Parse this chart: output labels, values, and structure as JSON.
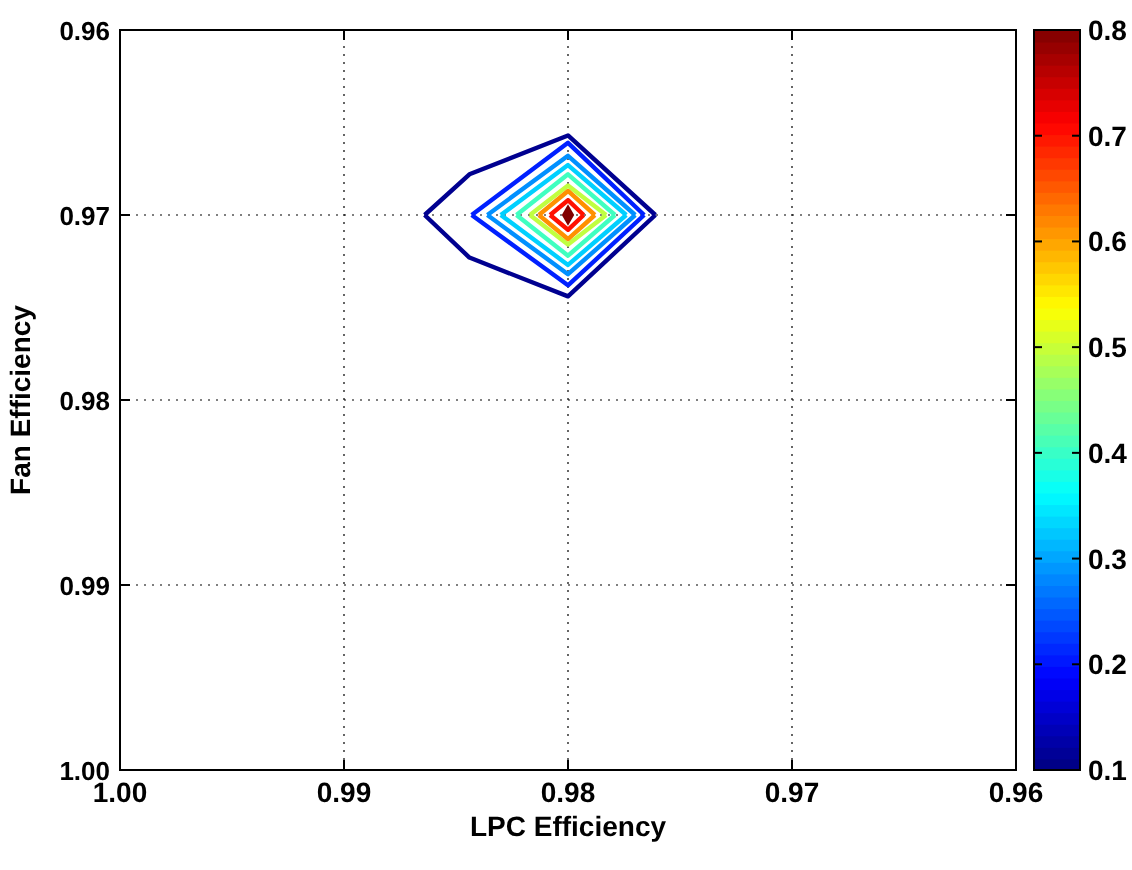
{
  "chart_data": {
    "type": "line",
    "xlabel": "LPC Efficiency",
    "ylabel": "Fan Efficiency",
    "xlim": [
      1.0,
      0.96
    ],
    "ylim": [
      1.0,
      0.96
    ],
    "xticks": [
      {
        "value": 1.0,
        "label": "1.00"
      },
      {
        "value": 0.99,
        "label": "0.99"
      },
      {
        "value": 0.98,
        "label": "0.98"
      },
      {
        "value": 0.97,
        "label": "0.97"
      },
      {
        "value": 0.96,
        "label": "0.96"
      }
    ],
    "yticks": [
      {
        "value": 1.0,
        "label": "1.00"
      },
      {
        "value": 0.99,
        "label": "0.99"
      },
      {
        "value": 0.98,
        "label": "0.98"
      },
      {
        "value": 0.97,
        "label": "0.97"
      },
      {
        "value": 0.96,
        "label": "0.96"
      }
    ],
    "grid": true,
    "line_style": "solid",
    "clim": [
      0.1,
      0.8
    ],
    "cticks": [
      0.1,
      0.2,
      0.3,
      0.4,
      0.5,
      0.6,
      0.7,
      0.8
    ],
    "series": [
      {
        "color": "#000090",
        "x": [
          0.9864,
          0.9844,
          0.98,
          0.9761
        ],
        "values": [
          0.97,
          0.9678,
          0.9657,
          0.97
        ]
      },
      {
        "color": "#000090",
        "x": [
          0.9864,
          0.9844,
          0.98,
          0.9761
        ],
        "values": [
          0.97,
          0.9723,
          0.9744,
          0.97
        ]
      },
      {
        "color": "#0020ff",
        "x": [
          0.9843,
          0.98,
          0.9766
        ],
        "values": [
          0.97,
          0.9661,
          0.97
        ]
      },
      {
        "color": "#0020ff",
        "x": [
          0.9843,
          0.98,
          0.9766
        ],
        "values": [
          0.97,
          0.9738,
          0.97
        ]
      },
      {
        "color": "#0090ff",
        "x": [
          0.9836,
          0.98,
          0.977
        ],
        "values": [
          0.97,
          0.9668,
          0.97
        ]
      },
      {
        "color": "#0090ff",
        "x": [
          0.9836,
          0.98,
          0.977
        ],
        "values": [
          0.97,
          0.9732,
          0.97
        ]
      },
      {
        "color": "#00d0ff",
        "x": [
          0.983,
          0.98,
          0.9774
        ],
        "values": [
          0.97,
          0.9673,
          0.97
        ]
      },
      {
        "color": "#00d0ff",
        "x": [
          0.983,
          0.98,
          0.9774
        ],
        "values": [
          0.97,
          0.9727,
          0.97
        ]
      },
      {
        "color": "#40ffc0",
        "x": [
          0.9823,
          0.98,
          0.9779
        ],
        "values": [
          0.97,
          0.9678,
          0.97
        ]
      },
      {
        "color": "#40ffc0",
        "x": [
          0.9823,
          0.98,
          0.9779
        ],
        "values": [
          0.97,
          0.9722,
          0.97
        ]
      },
      {
        "color": "#c0ff40",
        "x": [
          0.9817,
          0.98,
          0.9783
        ],
        "values": [
          0.97,
          0.9684,
          0.97
        ]
      },
      {
        "color": "#c0ff40",
        "x": [
          0.9817,
          0.98,
          0.9783
        ],
        "values": [
          0.97,
          0.9716,
          0.97
        ]
      },
      {
        "color": "#ff9000",
        "x": [
          0.9813,
          0.98,
          0.9788
        ],
        "values": [
          0.97,
          0.9687,
          0.97
        ]
      },
      {
        "color": "#ff9000",
        "x": [
          0.9813,
          0.98,
          0.9788
        ],
        "values": [
          0.97,
          0.9713,
          0.97
        ]
      },
      {
        "color": "#ff1000",
        "x": [
          0.9808,
          0.98,
          0.9793
        ],
        "values": [
          0.97,
          0.9692,
          0.97
        ]
      },
      {
        "color": "#ff1000",
        "x": [
          0.9808,
          0.98,
          0.9793
        ],
        "values": [
          0.97,
          0.9708,
          0.97
        ]
      },
      {
        "type": "scatter",
        "marker": "diamond",
        "color": "#800000",
        "x": [
          0.98
        ],
        "values": [
          0.97
        ]
      }
    ]
  }
}
